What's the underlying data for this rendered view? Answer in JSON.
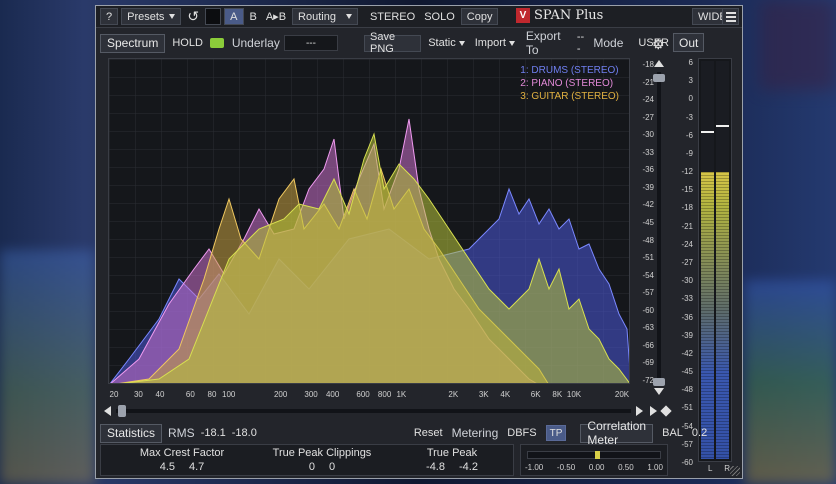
{
  "app": {
    "title": "SPAN Plus",
    "logo_letter": "V"
  },
  "topbar": {
    "help_label": "?",
    "presets_label": "Presets",
    "undo_icon": "undo-icon",
    "preset_a": "A",
    "preset_b": "B",
    "preset_ab": "A▸B",
    "routing_label": "Routing",
    "stereo_label": "STEREO",
    "solo_label": "SOLO",
    "copy_label": "Copy",
    "wide_label": "WIDE"
  },
  "toolbar": {
    "spectrum_tab": "Spectrum",
    "hold_label": "HOLD",
    "underlay_label": "Underlay",
    "underlay_value": "---",
    "save_png_label": "Save PNG",
    "static_label": "Static",
    "import_label": "Import",
    "export_to_label": "Export To",
    "export_to_value": "---",
    "mode_label": "Mode",
    "mode_value": "USER",
    "out_tab": "Out"
  },
  "spectrum": {
    "legend": [
      {
        "label": "1: DRUMS (STEREO)",
        "color": "#6f7ff0"
      },
      {
        "label": "2: PIANO (STEREO)",
        "color": "#e28ad8"
      },
      {
        "label": "3: GUITAR (STEREO)",
        "color": "#e0b040"
      }
    ],
    "y_ticks": [
      "-18",
      "-21",
      "-24",
      "-27",
      "-30",
      "-33",
      "-36",
      "-39",
      "-42",
      "-45",
      "-48",
      "-51",
      "-54",
      "-57",
      "-60",
      "-63",
      "-66",
      "-69",
      "-72"
    ],
    "x_ticks": [
      "20",
      "30",
      "40",
      "60",
      "80",
      "100",
      "200",
      "300",
      "400",
      "600",
      "800",
      "1K",
      "2K",
      "3K",
      "4K",
      "6K",
      "8K",
      "10K",
      "20K"
    ]
  },
  "output_meter": {
    "scale": [
      "6",
      "3",
      "0",
      "-3",
      "-6",
      "-9",
      "-12",
      "-15",
      "-18",
      "-21",
      "-24",
      "-27",
      "-30",
      "-33",
      "-36",
      "-39",
      "-42",
      "-45",
      "-48",
      "-51",
      "-54",
      "-57",
      "-60"
    ],
    "left_label": "L",
    "right_label": "R",
    "left_level": 0.72,
    "right_level": 0.72
  },
  "statistics": {
    "tab": "Statistics",
    "rms_label": "RMS",
    "rms_l": "-18.1",
    "rms_r": "-18.0",
    "reset_label": "Reset",
    "metering_label": "Metering",
    "metering_value": "DBFS",
    "tp_label": "TP",
    "max_crest_label": "Max Crest Factor",
    "max_crest_l": "4.5",
    "max_crest_r": "4.7",
    "tp_clippings_label": "True Peak Clippings",
    "tp_clippings_l": "0",
    "tp_clippings_r": "0",
    "true_peak_label": "True Peak",
    "true_peak_l": "-4.8",
    "true_peak_r": "-4.2"
  },
  "correlation": {
    "tab": "Correlation Meter",
    "bal_label": "BAL",
    "bal_value": "0.2",
    "scale": [
      "-1.00",
      "-0.50",
      "0.00",
      "0.50",
      "1.00"
    ],
    "value": 0.05
  }
}
